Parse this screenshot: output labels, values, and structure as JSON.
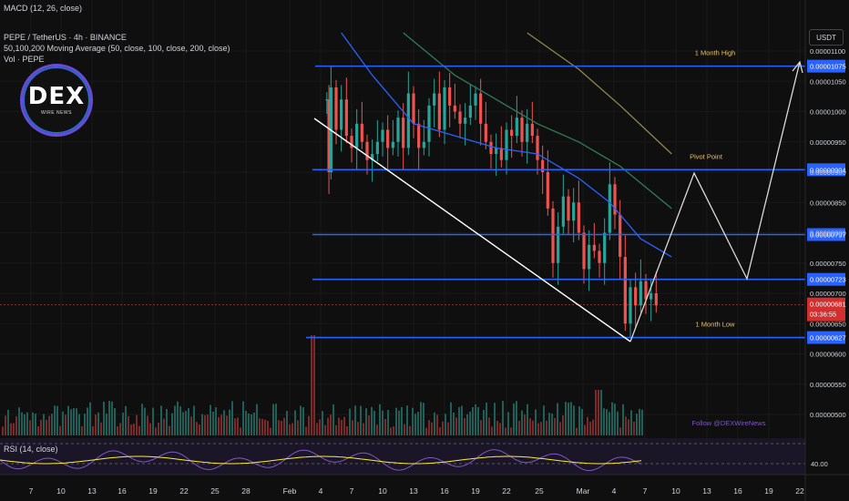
{
  "header": {
    "macd": "MACD (12, 26, close)",
    "symbol": "PEPE / TetherUS · 4h · BINANCE",
    "ma": "50,100,200 Moving Average (50, close, 100, close, 200, close)",
    "vol": "Vol · PEPE",
    "rsi": "RSI (14, close)"
  },
  "logo": {
    "big": "DEX",
    "small": "WIRE NEWS"
  },
  "currency": "USDT",
  "watermark": "Follow @DEXWireNews",
  "current_price": {
    "value": "0.00000681",
    "timer": "03:36:55"
  },
  "colors": {
    "up": "#26a69a",
    "down": "#ef5350",
    "level": "#2962ff",
    "ma50": "#2962ff",
    "ma100": "#2e7d5b",
    "ma200": "#8a8a4a",
    "rsi": "#7e57c2",
    "rsi_ma": "#ffeb3b",
    "projection": "#d9d9d9"
  },
  "chart_data": {
    "type": "candlestick",
    "ylim": [
      4.8e-06,
      1.13e-05
    ],
    "y_ticks": [
      "0.00001100",
      "0.00001050",
      "0.00001000",
      "0.00000950",
      "0.00000900",
      "0.00000850",
      "0.00000800",
      "0.00000750",
      "0.00000700",
      "0.00000650",
      "0.00000600",
      "0.00000550",
      "0.00000500"
    ],
    "x_ticks": [
      "7",
      "10",
      "13",
      "16",
      "19",
      "22",
      "25",
      "28",
      "Feb",
      "4",
      "7",
      "10",
      "13",
      "16",
      "19",
      "22",
      "25",
      "Mar",
      "4",
      "7",
      "10",
      "13",
      "16",
      "19",
      "22"
    ],
    "levels": [
      {
        "value": 1.075e-05,
        "label": "0.00001075",
        "annotation": "1 Month High"
      },
      {
        "value": 9.04e-06,
        "label": "0.00000904",
        "annotation": "Pivot Point"
      },
      {
        "value": 7.97e-06,
        "label": "0.00000797",
        "annotation": ""
      },
      {
        "value": 7.23e-06,
        "label": "0.00000723",
        "annotation": ""
      },
      {
        "value": 6.27e-06,
        "label": "0.00000627",
        "annotation": "1 Month Low"
      }
    ],
    "rsi_level": "40.00",
    "projection_path": [
      [
        6.6,
        6.27e-06
      ],
      [
        10.4,
        9e-06
      ],
      [
        16.2,
        7.28e-06
      ],
      [
        21.0,
        1.08e-05
      ]
    ],
    "trendline": [
      [
        3.8,
        9.9e-06
      ],
      [
        6.6,
        6.27e-06
      ]
    ]
  }
}
